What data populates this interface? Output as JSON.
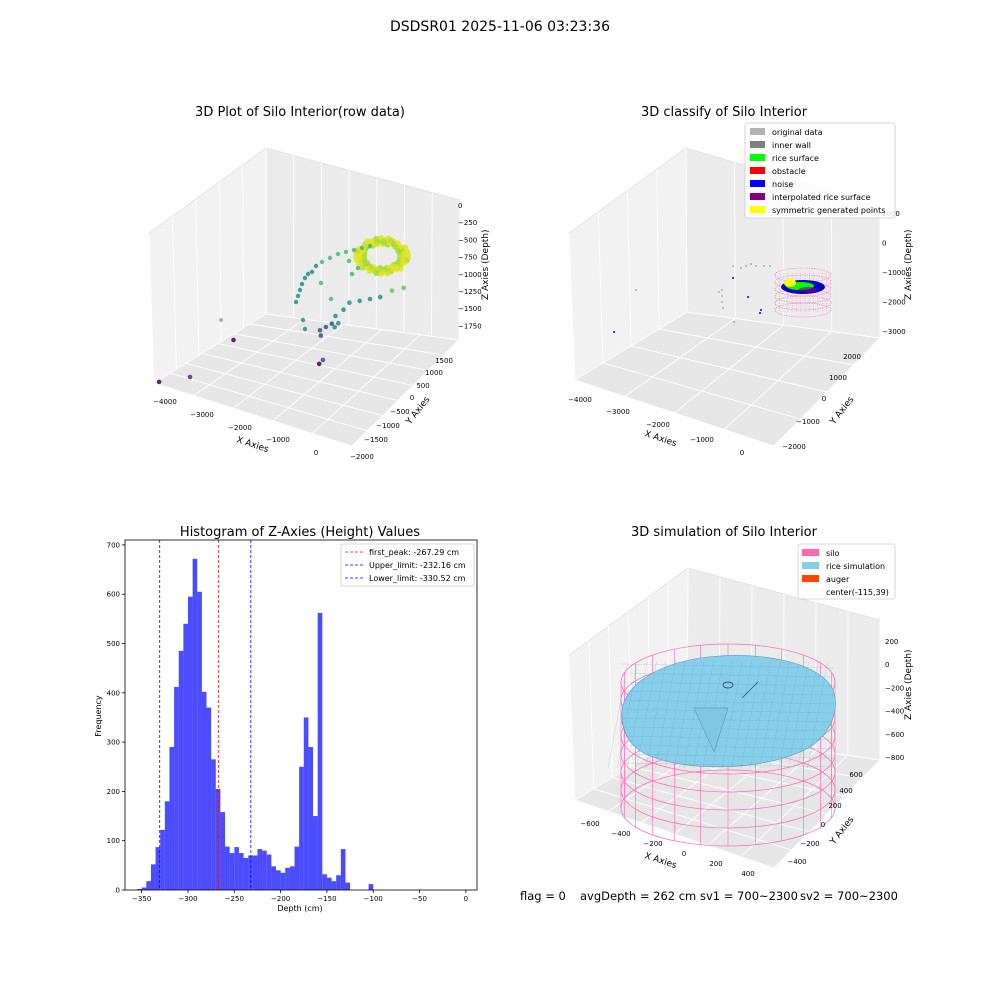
{
  "suptitle": "DSDSR01 2025-11-06 03:23:36",
  "status_line": {
    "flag": "flag = 0",
    "avg_depth": "avgDepth = 262 cm",
    "sv1": "sv1 = 700~2300",
    "sv2": "sv2 = 700~2300"
  },
  "chart_data": [
    {
      "type": "scatter",
      "projection": "3d",
      "title": "3D Plot of Silo Interior(row data)",
      "xlabel": "X Axies",
      "ylabel": "Y Axies",
      "zlabel": "Z Axies (Depth)",
      "xticks": [
        "−4000",
        "−3000",
        "−2000",
        "−1000",
        "0"
      ],
      "yticks": [
        "−2000",
        "−1500",
        "−1000",
        "−500",
        "0",
        "500",
        "1000",
        "1500"
      ],
      "zticks": [
        "0",
        "−250",
        "−500",
        "−750",
        "−1000",
        "−1250",
        "−1500",
        "−1750"
      ],
      "xlim": [
        -4200,
        300
      ],
      "ylim": [
        -2000,
        1800
      ],
      "zlim": [
        -1950,
        50
      ],
      "colormap": "viridis",
      "points": [
        {
          "x": -4150,
          "y": -1900,
          "z": -1950
        },
        {
          "x": -3600,
          "y": -200,
          "z": -1700
        },
        {
          "x": -1900,
          "y": 200,
          "z": -1350
        },
        {
          "x": -1850,
          "y": 150,
          "z": -1400
        },
        {
          "x": -1800,
          "y": 250,
          "z": -1300
        },
        {
          "x": -1700,
          "y": 300,
          "z": -1250
        },
        {
          "x": -1650,
          "y": 350,
          "z": -1150
        },
        {
          "x": -1500,
          "y": 400,
          "z": -1050
        },
        {
          "x": -1400,
          "y": 450,
          "z": -950
        },
        {
          "x": -1200,
          "y": 500,
          "z": -900
        },
        {
          "x": -1000,
          "y": 550,
          "z": -850
        },
        {
          "x": -800,
          "y": 600,
          "z": -800
        },
        {
          "x": -600,
          "y": 700,
          "z": -700
        },
        {
          "x": -400,
          "y": 800,
          "z": -650
        },
        {
          "x": -1300,
          "y": -200,
          "z": -1100
        },
        {
          "x": -1250,
          "y": -150,
          "z": -1050
        },
        {
          "x": -1500,
          "y": -300,
          "z": -1550
        },
        {
          "x": -1550,
          "y": -350,
          "z": -1600
        }
      ]
    },
    {
      "type": "scatter",
      "projection": "3d",
      "title": "3D classify of Silo Interior",
      "xlabel": "X Axies",
      "ylabel": "Y Axies",
      "zlabel": "Z Axies (Depth)",
      "xticks": [
        "−4000",
        "−3000",
        "−2000",
        "−1000",
        "0"
      ],
      "yticks": [
        "−2000",
        "−1000",
        "0",
        "1000",
        "2000"
      ],
      "zticks": [
        "1000",
        "0",
        "−1000",
        "−2000",
        "−3000"
      ],
      "xlim": [
        -4200,
        300
      ],
      "ylim": [
        -2300,
        2300
      ],
      "zlim": [
        -3300,
        1200
      ],
      "legend": [
        {
          "label": "original data",
          "color": "#b3b3b3"
        },
        {
          "label": "inner wall",
          "color": "#808080"
        },
        {
          "label": "rice surface",
          "color": "#00ff00"
        },
        {
          "label": "obstacle",
          "color": "#ff0000"
        },
        {
          "label": "noise",
          "color": "#0000ff"
        },
        {
          "label": "interpolated rice surface",
          "color": "#800080"
        },
        {
          "label": "symmetric generated points",
          "color": "#ffff00"
        }
      ],
      "legend_loc": "upper right"
    },
    {
      "type": "bar",
      "title": "Histogram of Z-Axies (Height) Values",
      "xlabel": "Depth (cm)",
      "ylabel": "Frequency",
      "bar_color": "#0000ff",
      "xlim": [
        -368,
        12
      ],
      "ylim": [
        0,
        710
      ],
      "xticks": [
        -350,
        -300,
        -250,
        -200,
        -150,
        -100,
        -50,
        0
      ],
      "xtick_labels": [
        "−350",
        "−300",
        "−250",
        "−200",
        "−150",
        "−100",
        "−50",
        "0"
      ],
      "yticks": [
        0,
        100,
        200,
        300,
        400,
        500,
        600,
        700
      ],
      "bin_start": -355,
      "bin_width": 5,
      "values": [
        2,
        5,
        18,
        52,
        87,
        122,
        180,
        290,
        412,
        485,
        540,
        595,
        672,
        605,
        402,
        370,
        265,
        205,
        158,
        88,
        75,
        87,
        75,
        65,
        70,
        70,
        83,
        80,
        72,
        48,
        40,
        35,
        45,
        48,
        88,
        250,
        350,
        290,
        150,
        562,
        32,
        25,
        18,
        30,
        83,
        15,
        0,
        0,
        0,
        0,
        12
      ],
      "reference_lines": [
        {
          "label": "first_peak: -267.29 cm",
          "x": -267.29,
          "color": "#ff0000"
        },
        {
          "label": "Upper_limit: -232.16 cm",
          "x": -232.16,
          "color": "#0000ff"
        },
        {
          "label": "Lower_limit: -330.52 cm",
          "x": -330.52,
          "color": "#0000ff"
        }
      ],
      "legend_loc": "upper right"
    },
    {
      "type": "surface",
      "projection": "3d",
      "title": "3D simulation of Silo Interior",
      "xlabel": "X Axies",
      "ylabel": "Y Axies",
      "zlabel": "Z Axies (Depth)",
      "xticks": [
        "−600",
        "−400",
        "−200",
        "0",
        "200",
        "400"
      ],
      "yticks": [
        "−400",
        "−200",
        "0",
        "200",
        "400",
        "600"
      ],
      "zticks": [
        "200",
        "0",
        "−200",
        "−400",
        "−600",
        "−800"
      ],
      "legend": [
        {
          "label": "silo",
          "color": "#ff69b4",
          "swatch": true
        },
        {
          "label": "rice simulation",
          "color": "#87ceeb",
          "swatch": true
        },
        {
          "label": "auger",
          "color": "#ff4500",
          "swatch": true
        },
        {
          "label": "center(-115,39)",
          "color": "",
          "swatch": false
        }
      ],
      "legend_loc": "upper right"
    }
  ]
}
